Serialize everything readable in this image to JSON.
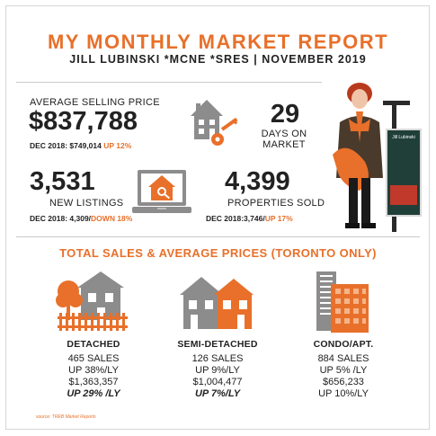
{
  "header": {
    "title": "MY MONTHLY MARKET REPORT",
    "subtitle": "JILL LUBINSKI *MCNE *SRES  | NOVEMBER 2019"
  },
  "kpis": {
    "avg_price": {
      "label": "AVERAGE SELLING PRICE",
      "value": "$837,788",
      "compare": "DEC 2018: $749,014",
      "change": "UP 12%"
    },
    "days_on_market": {
      "value": "29",
      "label_line1": "DAYS ON",
      "label_line2": "MARKET"
    },
    "new_listings": {
      "value": "3,531",
      "label": "NEW LISTINGS",
      "compare": "DEC 2018: 4,309/",
      "change": "DOWN 18%"
    },
    "properties_sold": {
      "value": "4,399",
      "label": "PROPERTIES SOLD",
      "compare": "DEC 2018:3,746/",
      "change": "UP 17%"
    }
  },
  "sign_text": "Jill Lubinski",
  "section": {
    "title": "TOTAL SALES & AVERAGE PRICES (TORONTO ONLY)"
  },
  "categories": [
    {
      "name": "DETACHED",
      "sales": "465 SALES",
      "sales_change": "UP 38%/LY",
      "price": "$1,363,357",
      "price_change": "UP 29% /LY"
    },
    {
      "name": "SEMI-DETACHED",
      "sales": "126 SALES",
      "sales_change": "UP 9%/LY",
      "price": "$1,004,477",
      "price_change": "UP 7%/LY"
    },
    {
      "name": "CONDO/APT.",
      "sales": "884 SALES",
      "sales_change": "UP 5% /LY",
      "price": "$656,233",
      "price_change": "UP 10%/LY"
    }
  ],
  "source": "source: TREB Market Reports",
  "colors": {
    "accent": "#e8702a",
    "gray": "#8c8c8c",
    "text": "#222222"
  },
  "icons": [
    "house-key-icon",
    "laptop-house-icon",
    "detached-house-icon",
    "semi-detached-house-icon",
    "condo-building-icon"
  ]
}
